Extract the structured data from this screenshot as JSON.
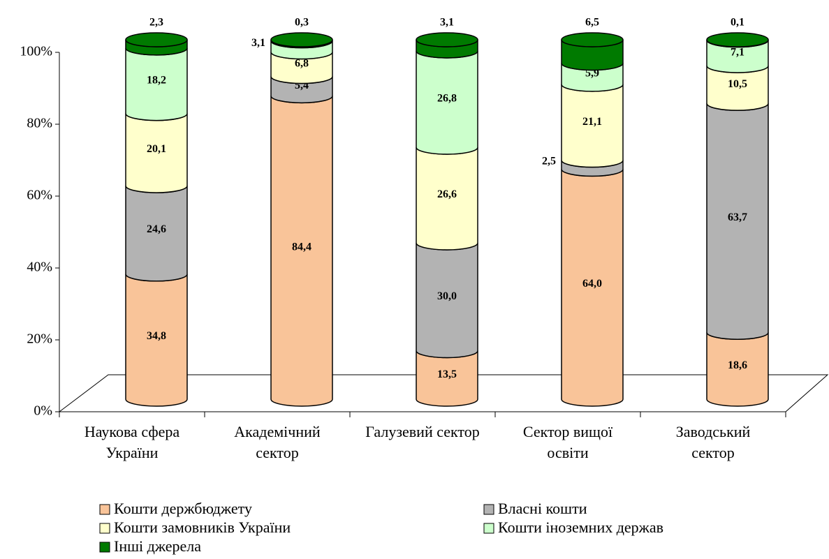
{
  "chart_data": {
    "type": "stacked_cylinder",
    "categories": [
      "Наукова сфера України",
      "Академічний сектор",
      "Галузевий сектор",
      "Сектор вищої освіти",
      "Заводський сектор"
    ],
    "ylim": [
      0,
      100
    ],
    "yticks": [
      {
        "value": 0,
        "label": "0%"
      },
      {
        "value": 20,
        "label": "20%"
      },
      {
        "value": 40,
        "label": "40%"
      },
      {
        "value": 60,
        "label": "60%"
      },
      {
        "value": 80,
        "label": "80%"
      },
      {
        "value": 100,
        "label": "100%"
      }
    ],
    "legend": "bottom",
    "series": [
      {
        "name": "Кошти держбюджету",
        "color": "#f9c499",
        "values": [
          34.8,
          84.4,
          13.5,
          64.0,
          18.6
        ],
        "value_labels": [
          "34,8",
          "84,4",
          "13,5",
          "64,0",
          "18,6"
        ]
      },
      {
        "name": "Власні кошти",
        "color": "#b3b3b3",
        "values": [
          24.6,
          5.4,
          30.0,
          2.5,
          63.7
        ],
        "value_labels": [
          "24,6",
          "5,4",
          "30,0",
          "2,5",
          "63,7"
        ]
      },
      {
        "name": "Кошти замовників України",
        "color": "#ffffcc",
        "values": [
          20.1,
          6.8,
          26.6,
          21.1,
          10.5
        ],
        "value_labels": [
          "20,1",
          "6,8",
          "26,6",
          "21,1",
          "10,5"
        ]
      },
      {
        "name": "Кошти іноземних держав",
        "color": "#ccffcc",
        "values": [
          18.2,
          3.1,
          26.8,
          5.9,
          7.1
        ],
        "value_labels": [
          "18,2",
          "3,1",
          "26,8",
          "5,9",
          "7,1"
        ]
      },
      {
        "name": "Інші джерела",
        "color": "#007a00",
        "values": [
          2.3,
          0.3,
          3.1,
          6.5,
          0.1
        ],
        "value_labels": [
          "2,3",
          "0,3",
          "3,1",
          "6,5",
          "0,1"
        ]
      }
    ]
  }
}
